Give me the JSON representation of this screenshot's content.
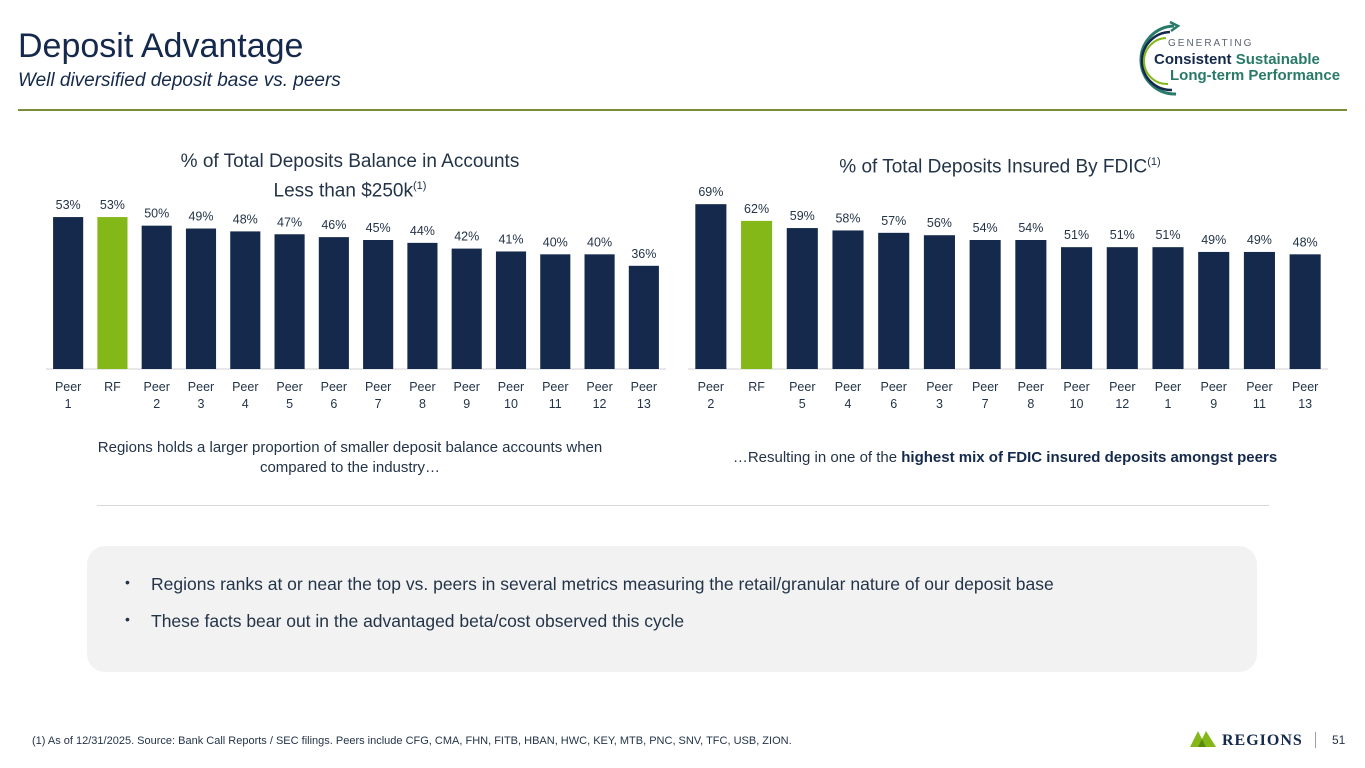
{
  "header": {
    "title": "Deposit Advantage",
    "subtitle": "Well diversified deposit base vs. peers"
  },
  "logo": {
    "line1": "GENERATING",
    "line2a": "Consistent",
    "line2b": "Sustainable",
    "line3": "Long-term Performance"
  },
  "colors": {
    "navy": "#14294b",
    "green": "#84b818",
    "accent_rule": "#7a8e3a"
  },
  "chart_data": [
    {
      "type": "bar",
      "title_line1": "% of Total Deposits Balance in Accounts",
      "title_line2": "Less than $250k",
      "title_sup": "(1)",
      "categories": [
        [
          "Peer",
          "1"
        ],
        [
          "RF",
          ""
        ],
        [
          "Peer",
          "2"
        ],
        [
          "Peer",
          "3"
        ],
        [
          "Peer",
          "4"
        ],
        [
          "Peer",
          "5"
        ],
        [
          "Peer",
          "6"
        ],
        [
          "Peer",
          "7"
        ],
        [
          "Peer",
          "8"
        ],
        [
          "Peer",
          "9"
        ],
        [
          "Peer",
          "10"
        ],
        [
          "Peer",
          "11"
        ],
        [
          "Peer",
          "12"
        ],
        [
          "Peer",
          "13"
        ]
      ],
      "values": [
        53,
        53,
        50,
        49,
        48,
        47,
        46,
        45,
        44,
        42,
        41,
        40,
        40,
        36
      ],
      "labels": [
        "53%",
        "53%",
        "50%",
        "49%",
        "48%",
        "47%",
        "46%",
        "45%",
        "44%",
        "42%",
        "41%",
        "40%",
        "40%",
        "36%"
      ],
      "highlight": "RF",
      "ylim": [
        0,
        60
      ]
    },
    {
      "type": "bar",
      "title_line1": "% of Total Deposits Insured By FDIC",
      "title_sup": "(1)",
      "categories": [
        [
          "Peer",
          "2"
        ],
        [
          "RF",
          ""
        ],
        [
          "Peer",
          "5"
        ],
        [
          "Peer",
          "4"
        ],
        [
          "Peer",
          "6"
        ],
        [
          "Peer",
          "3"
        ],
        [
          "Peer",
          "7"
        ],
        [
          "Peer",
          "8"
        ],
        [
          "Peer",
          "10"
        ],
        [
          "Peer",
          "12"
        ],
        [
          "Peer",
          "1"
        ],
        [
          "Peer",
          "9"
        ],
        [
          "Peer",
          "11"
        ],
        [
          "Peer",
          "13"
        ]
      ],
      "values": [
        69,
        62,
        59,
        58,
        57,
        56,
        54,
        54,
        51,
        51,
        51,
        49,
        49,
        48
      ],
      "labels": [
        "69%",
        "62%",
        "59%",
        "58%",
        "57%",
        "56%",
        "54%",
        "54%",
        "51%",
        "51%",
        "51%",
        "49%",
        "49%",
        "48%"
      ],
      "highlight": "RF",
      "ylim": [
        0,
        72
      ]
    }
  ],
  "captions": {
    "left_line1": "Regions holds a larger proportion of smaller deposit balance accounts when",
    "left_line2": "compared to the industry…",
    "right_prefix": "…Resulting in one of the ",
    "right_bold": "highest mix of FDIC insured deposits amongst peers"
  },
  "callout": {
    "bullets": [
      "Regions ranks at or near the top vs. peers in several metrics measuring the retail/granular nature of our deposit base",
      "These facts bear out in the advantaged beta/cost observed this cycle"
    ]
  },
  "footer": {
    "footnote": "(1) As of 12/31/2025. Source: Bank Call Reports / SEC filings. Peers include CFG, CMA, FHN, FITB, HBAN, HWC, KEY, MTB, PNC, SNV, TFC, USB, ZION.",
    "brand": "REGIONS",
    "page": "51"
  }
}
